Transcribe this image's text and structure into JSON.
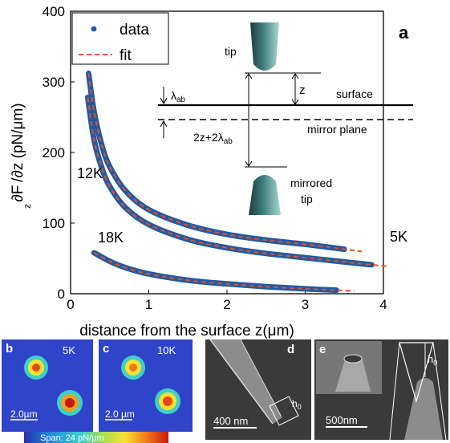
{
  "chart_data": {
    "type": "scatter",
    "panel_label": "a",
    "xlabel": "distance from the surface z(μm)",
    "ylabel": "∂F /∂z (pN/μm)",
    "ylabel_sub": "z",
    "xlim": [
      0,
      4
    ],
    "ylim": [
      0,
      400
    ],
    "x_ticks": [
      "0",
      "1",
      "2",
      "3",
      "4"
    ],
    "y_ticks": [
      "0",
      "100",
      "200",
      "300",
      "400"
    ],
    "grid": false,
    "legend": {
      "placement": "top-left",
      "entries": [
        "data",
        "fit"
      ]
    },
    "colors": {
      "data": "#1f5aa6",
      "fit": "#e8501e"
    },
    "series": [
      {
        "name": "5K",
        "x": [
          0.23,
          0.3,
          0.4,
          0.5,
          0.7,
          1.0,
          1.5,
          2.0,
          2.5,
          3.0,
          3.5
        ],
        "y": [
          312,
          258,
          210,
          180,
          146,
          119,
          97,
          84,
          76,
          70,
          63
        ]
      },
      {
        "name": "12K",
        "x": [
          0.22,
          0.3,
          0.4,
          0.5,
          0.7,
          1.0,
          1.5,
          2.0,
          2.5,
          3.0,
          3.5,
          3.85
        ],
        "y": [
          278,
          218,
          178,
          152,
          122,
          98,
          77,
          65,
          57,
          51,
          45,
          41
        ]
      },
      {
        "name": "18K",
        "x": [
          0.3,
          0.5,
          0.7,
          1.0,
          1.5,
          2.0,
          2.5,
          3.0,
          3.4
        ],
        "y": [
          58,
          46,
          37,
          28,
          19,
          14,
          10,
          7,
          5
        ]
      }
    ],
    "annotations": {
      "curve_labels": [
        "5K",
        "12K",
        "18K"
      ],
      "inset": [
        "tip",
        "z",
        "λ",
        "ab",
        "surface",
        "mirror plane",
        "2z+2λ",
        "ab",
        "mirrored",
        "tip"
      ]
    }
  },
  "panels": {
    "b": {
      "label": "b",
      "temp": "5K",
      "scale": "2.0µm"
    },
    "c": {
      "label": "c",
      "temp": "10K",
      "scale": "2.0 µm"
    },
    "d": {
      "label": "d",
      "scale": "400 nm",
      "marker": "h",
      "marker_sub": "0"
    },
    "e": {
      "label": "e",
      "scale": "500nm",
      "marker": "h",
      "marker_sub": "0"
    },
    "colorbar": {
      "text": "Span: 24 pN/µm"
    }
  }
}
